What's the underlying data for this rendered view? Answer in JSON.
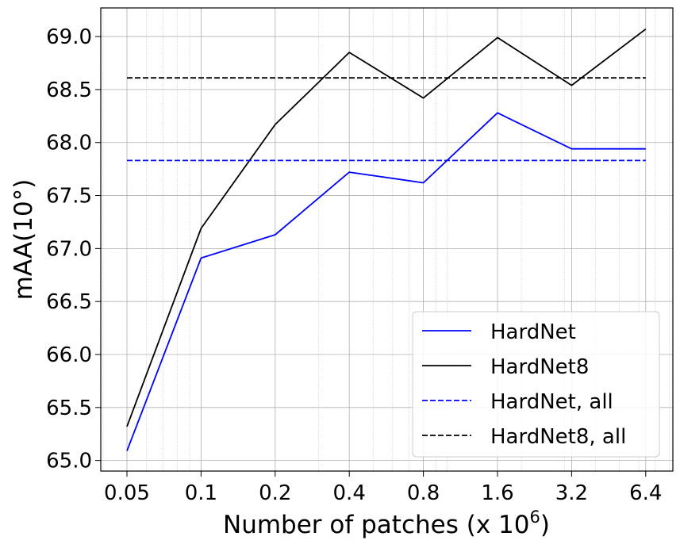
{
  "chart_data": {
    "type": "line",
    "x_scale": "log2",
    "xlabel": "Number of patches (x 10",
    "xlabel_superscript": "6",
    "xlabel_suffix": ")",
    "ylabel": "mAA(10°)",
    "categories": [
      "0.05",
      "0.1",
      "0.2",
      "0.4",
      "0.8",
      "1.6",
      "3.2",
      "6.4"
    ],
    "x": [
      0.05,
      0.1,
      0.2,
      0.4,
      0.8,
      1.6,
      3.2,
      6.4
    ],
    "ylim": [
      64.9,
      69.27
    ],
    "yticks": [
      "65.0",
      "65.5",
      "66.0",
      "66.5",
      "67.0",
      "67.5",
      "68.0",
      "68.5",
      "69.0"
    ],
    "grid": true,
    "legend_position": "lower-right",
    "series": [
      {
        "name": "HardNet",
        "style": "solid",
        "color": "#0000ff",
        "values": [
          65.09,
          66.91,
          67.13,
          67.72,
          67.62,
          68.28,
          67.94,
          67.94
        ]
      },
      {
        "name": "HardNet8",
        "style": "solid",
        "color": "#000000",
        "values": [
          65.32,
          67.19,
          68.17,
          68.85,
          68.42,
          68.99,
          68.54,
          69.07
        ]
      },
      {
        "name": "HardNet, all",
        "style": "dashed",
        "color": "#0000ff",
        "values": [
          67.83,
          67.83,
          67.83,
          67.83,
          67.83,
          67.83,
          67.83,
          67.83
        ]
      },
      {
        "name": "HardNet8, all",
        "style": "dashed",
        "color": "#000000",
        "values": [
          68.61,
          68.61,
          68.61,
          68.61,
          68.61,
          68.61,
          68.61,
          68.61
        ]
      }
    ]
  }
}
